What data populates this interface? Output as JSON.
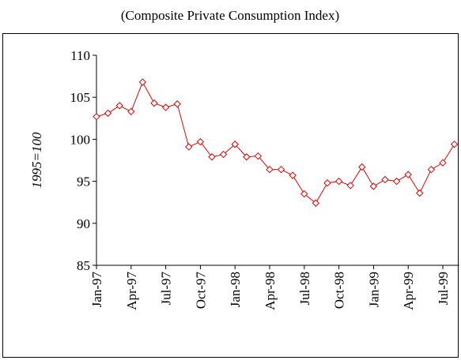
{
  "chart_data": {
    "type": "line",
    "title": "(Composite Private Consumption Index)",
    "y_label": "1995=100",
    "categories": [
      "Jan-97",
      null,
      null,
      "Apr-97",
      null,
      null,
      "Jul-97",
      null,
      null,
      "Oct-97",
      null,
      null,
      "Jan-98",
      null,
      null,
      "Apr-98",
      null,
      null,
      "Jul-98",
      null,
      null,
      "Oct-98",
      null,
      null,
      "Jan-99",
      null,
      null,
      "Apr-99",
      null,
      null,
      "Jul-99",
      null
    ],
    "values": [
      102.7,
      103.1,
      104.0,
      103.3,
      106.8,
      104.3,
      103.8,
      104.2,
      99.1,
      99.7,
      97.9,
      98.2,
      99.4,
      97.9,
      98.0,
      96.4,
      96.4,
      95.7,
      93.5,
      92.4,
      94.8,
      95.0,
      94.5,
      96.7,
      94.4,
      95.2,
      95.0,
      95.8,
      93.6,
      96.4,
      97.2,
      99.4
    ],
    "color": "#e00000",
    "ylim": [
      85,
      110
    ],
    "yticks": [
      85,
      90,
      95,
      100,
      105,
      110
    ],
    "grid": false
  }
}
